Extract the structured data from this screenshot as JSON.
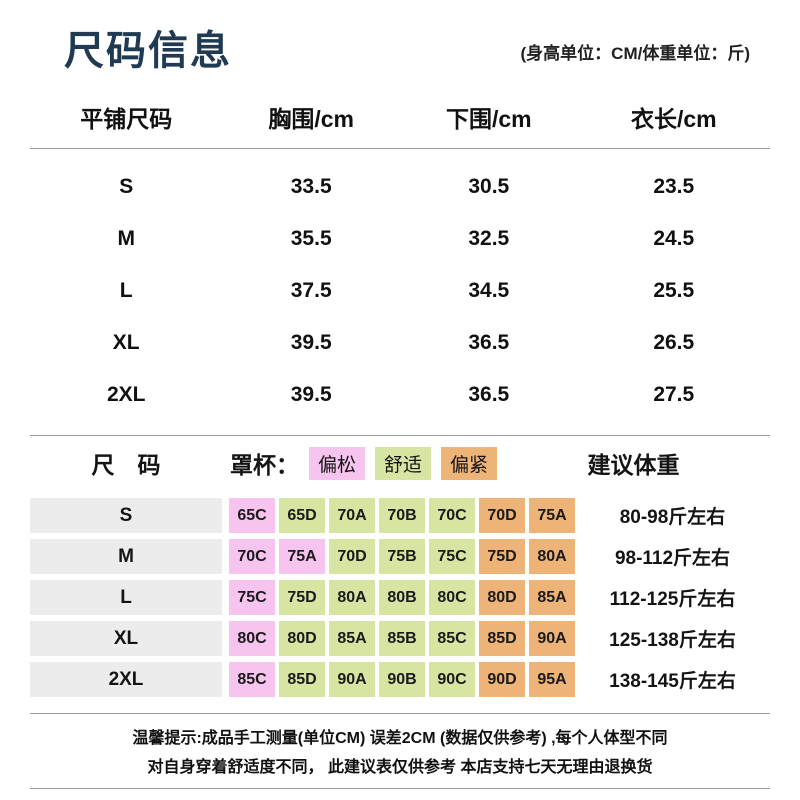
{
  "colors": {
    "title_color": "#1f3a52",
    "loose_bg": "#f7c4ef",
    "comfort_bg": "#d7e5a2",
    "tight_bg": "#eeb477",
    "band_bg": "#ececec",
    "divider_color": "#9a9a9a"
  },
  "header": {
    "title": "尺码信息",
    "unit_note": "(身高单位：CM/体重单位：斤)"
  },
  "size_table": {
    "columns": [
      "平铺尺码",
      "胸围/cm",
      "下围/cm",
      "衣长/cm"
    ],
    "rows": [
      {
        "size": "S",
        "bust": "33.5",
        "underbust": "30.5",
        "length": "23.5"
      },
      {
        "size": "M",
        "bust": "35.5",
        "underbust": "32.5",
        "length": "24.5"
      },
      {
        "size": "L",
        "bust": "37.5",
        "underbust": "34.5",
        "length": "25.5"
      },
      {
        "size": "XL",
        "bust": "39.5",
        "underbust": "36.5",
        "length": "26.5"
      },
      {
        "size": "2XL",
        "bust": "39.5",
        "underbust": "36.5",
        "length": "27.5"
      }
    ]
  },
  "cup_section": {
    "size_label": "尺　码",
    "cup_label": "罩杯：",
    "legend": [
      {
        "label": "偏松",
        "fit": "loose"
      },
      {
        "label": "舒适",
        "fit": "comfort"
      },
      {
        "label": "偏紧",
        "fit": "tight"
      }
    ],
    "weight_label": "建议体重",
    "rows": [
      {
        "size": "S",
        "weight": "80-98斤左右",
        "cups": [
          {
            "label": "65C",
            "fit": "loose"
          },
          {
            "label": "65D",
            "fit": "comfort"
          },
          {
            "label": "70A",
            "fit": "comfort"
          },
          {
            "label": "70B",
            "fit": "comfort"
          },
          {
            "label": "70C",
            "fit": "comfort"
          },
          {
            "label": "70D",
            "fit": "tight"
          },
          {
            "label": "75A",
            "fit": "tight"
          }
        ]
      },
      {
        "size": "M",
        "weight": "98-112斤左右",
        "cups": [
          {
            "label": "70C",
            "fit": "loose"
          },
          {
            "label": "75A",
            "fit": "loose"
          },
          {
            "label": "70D",
            "fit": "comfort"
          },
          {
            "label": "75B",
            "fit": "comfort"
          },
          {
            "label": "75C",
            "fit": "comfort"
          },
          {
            "label": "75D",
            "fit": "tight"
          },
          {
            "label": "80A",
            "fit": "tight"
          }
        ]
      },
      {
        "size": "L",
        "weight": "112-125斤左右",
        "cups": [
          {
            "label": "75C",
            "fit": "loose"
          },
          {
            "label": "75D",
            "fit": "comfort"
          },
          {
            "label": "80A",
            "fit": "comfort"
          },
          {
            "label": "80B",
            "fit": "comfort"
          },
          {
            "label": "80C",
            "fit": "comfort"
          },
          {
            "label": "80D",
            "fit": "tight"
          },
          {
            "label": "85A",
            "fit": "tight"
          }
        ]
      },
      {
        "size": "XL",
        "weight": "125-138斤左右",
        "cups": [
          {
            "label": "80C",
            "fit": "loose"
          },
          {
            "label": "80D",
            "fit": "comfort"
          },
          {
            "label": "85A",
            "fit": "comfort"
          },
          {
            "label": "85B",
            "fit": "comfort"
          },
          {
            "label": "85C",
            "fit": "comfort"
          },
          {
            "label": "85D",
            "fit": "tight"
          },
          {
            "label": "90A",
            "fit": "tight"
          }
        ]
      },
      {
        "size": "2XL",
        "weight": "138-145斤左右",
        "cups": [
          {
            "label": "85C",
            "fit": "loose"
          },
          {
            "label": "85D",
            "fit": "comfort"
          },
          {
            "label": "90A",
            "fit": "comfort"
          },
          {
            "label": "90B",
            "fit": "comfort"
          },
          {
            "label": "90C",
            "fit": "comfort"
          },
          {
            "label": "90D",
            "fit": "tight"
          },
          {
            "label": "95A",
            "fit": "tight"
          }
        ]
      }
    ]
  },
  "footer": {
    "line1": "温馨提示:成品手工测量(单位CM) 误差2CM (数据仅供参考) ,每个人体型不同",
    "line2": "对自身穿着舒适度不同， 此建议表仅供参考 本店支持七天无理由退换货"
  }
}
